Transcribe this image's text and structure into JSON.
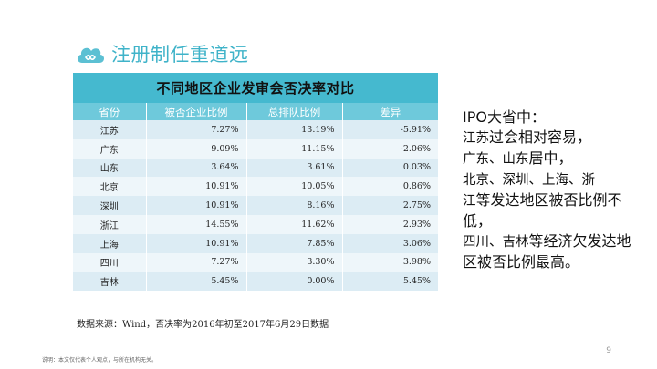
{
  "header": {
    "title": "注册制任重道远",
    "icon": "cloud-icon",
    "accent_color": "#3fb3c9"
  },
  "table": {
    "caption": "不同地区企业发审会否决率对比",
    "columns": [
      "省份",
      "被否企业比例",
      "总排队比例",
      "差异"
    ],
    "rows": [
      [
        "江苏",
        "7.27%",
        "13.19%",
        "-5.91%"
      ],
      [
        "广东",
        "9.09%",
        "11.15%",
        "-2.06%"
      ],
      [
        "山东",
        "3.64%",
        "3.61%",
        "0.03%"
      ],
      [
        "北京",
        "10.91%",
        "10.05%",
        "0.86%"
      ],
      [
        "深圳",
        "10.91%",
        "8.16%",
        "2.75%"
      ],
      [
        "浙江",
        "14.55%",
        "11.62%",
        "2.93%"
      ],
      [
        "上海",
        "10.91%",
        "7.85%",
        "3.06%"
      ],
      [
        "四川",
        "7.27%",
        "3.30%",
        "3.98%"
      ],
      [
        "吉林",
        "5.45%",
        "0.00%",
        "5.45%"
      ]
    ]
  },
  "note": {
    "l1": "IPO大省中：",
    "l2a": "江苏",
    "l2b": "过会相对容易，",
    "l3a": "广东、山东",
    "l3b": "居中，",
    "l4": "北京、深圳、上海、浙",
    "l5a": "江",
    "l5b": "等发达地区被否比例不低，",
    "l6a": "四川、吉林",
    "l6b": "等经济欠发达地区被否比例最高。"
  },
  "footer": {
    "source": "数据来源：Wind，否决率为2016年初至2017年6月29日数据",
    "page_number": "9",
    "disclaimer": "说明：本文仅代表个人观点，与所在机构无关。"
  }
}
